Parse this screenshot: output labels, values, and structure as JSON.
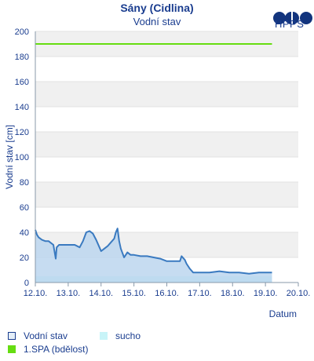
{
  "header": {
    "title": "Sány (Cidlina)",
    "subtitle": "Vodní stav",
    "logo_text": "HPPS"
  },
  "legend": {
    "water_level": "Vodní stav",
    "drought": "sucho",
    "spa1": "1.SPA (bdělost)"
  },
  "colors": {
    "water_line": "#3a7ac0",
    "water_fill": "#bcd6ee",
    "drought_fill": "#c8f4f8",
    "spa_line": "#66dd11",
    "band": "#f0f0f0",
    "axis_text": "#1a3d8f"
  },
  "chart_data": {
    "type": "area",
    "title": "Sány (Cidlina)",
    "subtitle": "Vodní stav",
    "xlabel": "Datum",
    "ylabel": "Vodní stav [cm]",
    "x_ticks": [
      "12.10.",
      "13.10.",
      "14.10.",
      "15.10.",
      "16.10.",
      "17.10.",
      "18.10.",
      "19.10.",
      "20.10."
    ],
    "y_ticks": [
      0,
      20,
      40,
      60,
      80,
      100,
      120,
      140,
      160,
      180,
      200
    ],
    "xlim_days": [
      12,
      20
    ],
    "ylim": [
      0,
      200
    ],
    "series": [
      {
        "name": "Vodní stav",
        "x": [
          12.0,
          12.05,
          12.1,
          12.2,
          12.3,
          12.4,
          12.55,
          12.62,
          12.65,
          12.72,
          12.85,
          13.0,
          13.2,
          13.35,
          13.45,
          13.55,
          13.65,
          13.75,
          13.85,
          13.95,
          14.0,
          14.1,
          14.2,
          14.3,
          14.4,
          14.45,
          14.5,
          14.55,
          14.6,
          14.7,
          14.8,
          14.9,
          15.0,
          15.2,
          15.4,
          15.6,
          15.8,
          16.0,
          16.2,
          16.4,
          16.45,
          16.55,
          16.6,
          16.7,
          16.8,
          17.0,
          17.3,
          17.6,
          17.9,
          18.2,
          18.5,
          18.8,
          19.0,
          19.2
        ],
        "y": [
          42,
          38,
          36,
          34,
          33,
          33,
          30,
          19,
          28,
          30,
          30,
          30,
          30,
          28,
          33,
          40,
          41,
          39,
          34,
          28,
          25,
          27,
          29,
          32,
          35,
          40,
          43,
          33,
          27,
          20,
          24,
          22,
          22,
          21,
          21,
          20,
          19,
          17,
          17,
          17,
          21,
          18,
          15,
          11,
          8,
          8,
          8,
          9,
          8,
          8,
          7,
          8,
          8,
          8
        ]
      },
      {
        "name": "1.SPA (bdělost)",
        "x": [
          12.0,
          19.2
        ],
        "y": [
          190,
          190
        ]
      },
      {
        "name": "sucho",
        "x": [
          12.0,
          19.2
        ],
        "y": [
          5,
          5
        ]
      }
    ]
  }
}
